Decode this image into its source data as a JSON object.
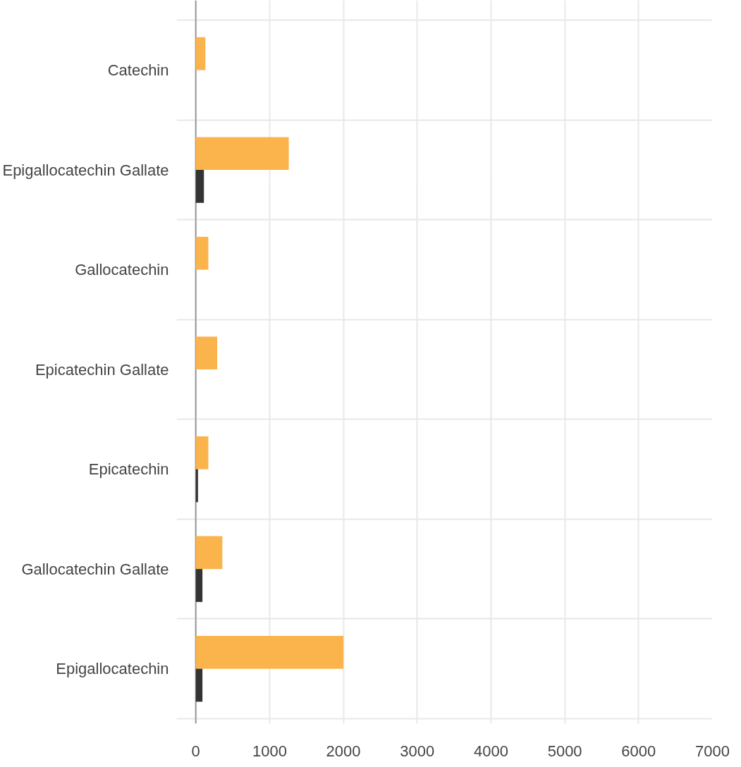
{
  "chart_data": {
    "type": "bar",
    "orientation": "horizontal",
    "categories": [
      "Catechin",
      "Epigallocatechin Gallate",
      "Gallocatechin",
      "Epicatechin Gallate",
      "Epicatechin",
      "Gallocatechin Gallate",
      "Epigallocatechin"
    ],
    "series": [
      {
        "color": "#fbb44c",
        "values": [
          130,
          1260,
          170,
          290,
          170,
          360,
          2000
        ]
      },
      {
        "color": "#333333",
        "values": [
          null,
          110,
          null,
          null,
          30,
          90,
          90
        ]
      }
    ],
    "xlim": [
      -260,
      7000
    ],
    "xticks": [
      0,
      1000,
      2000,
      3000,
      4000,
      5000,
      6000,
      7000
    ],
    "grid": true
  }
}
